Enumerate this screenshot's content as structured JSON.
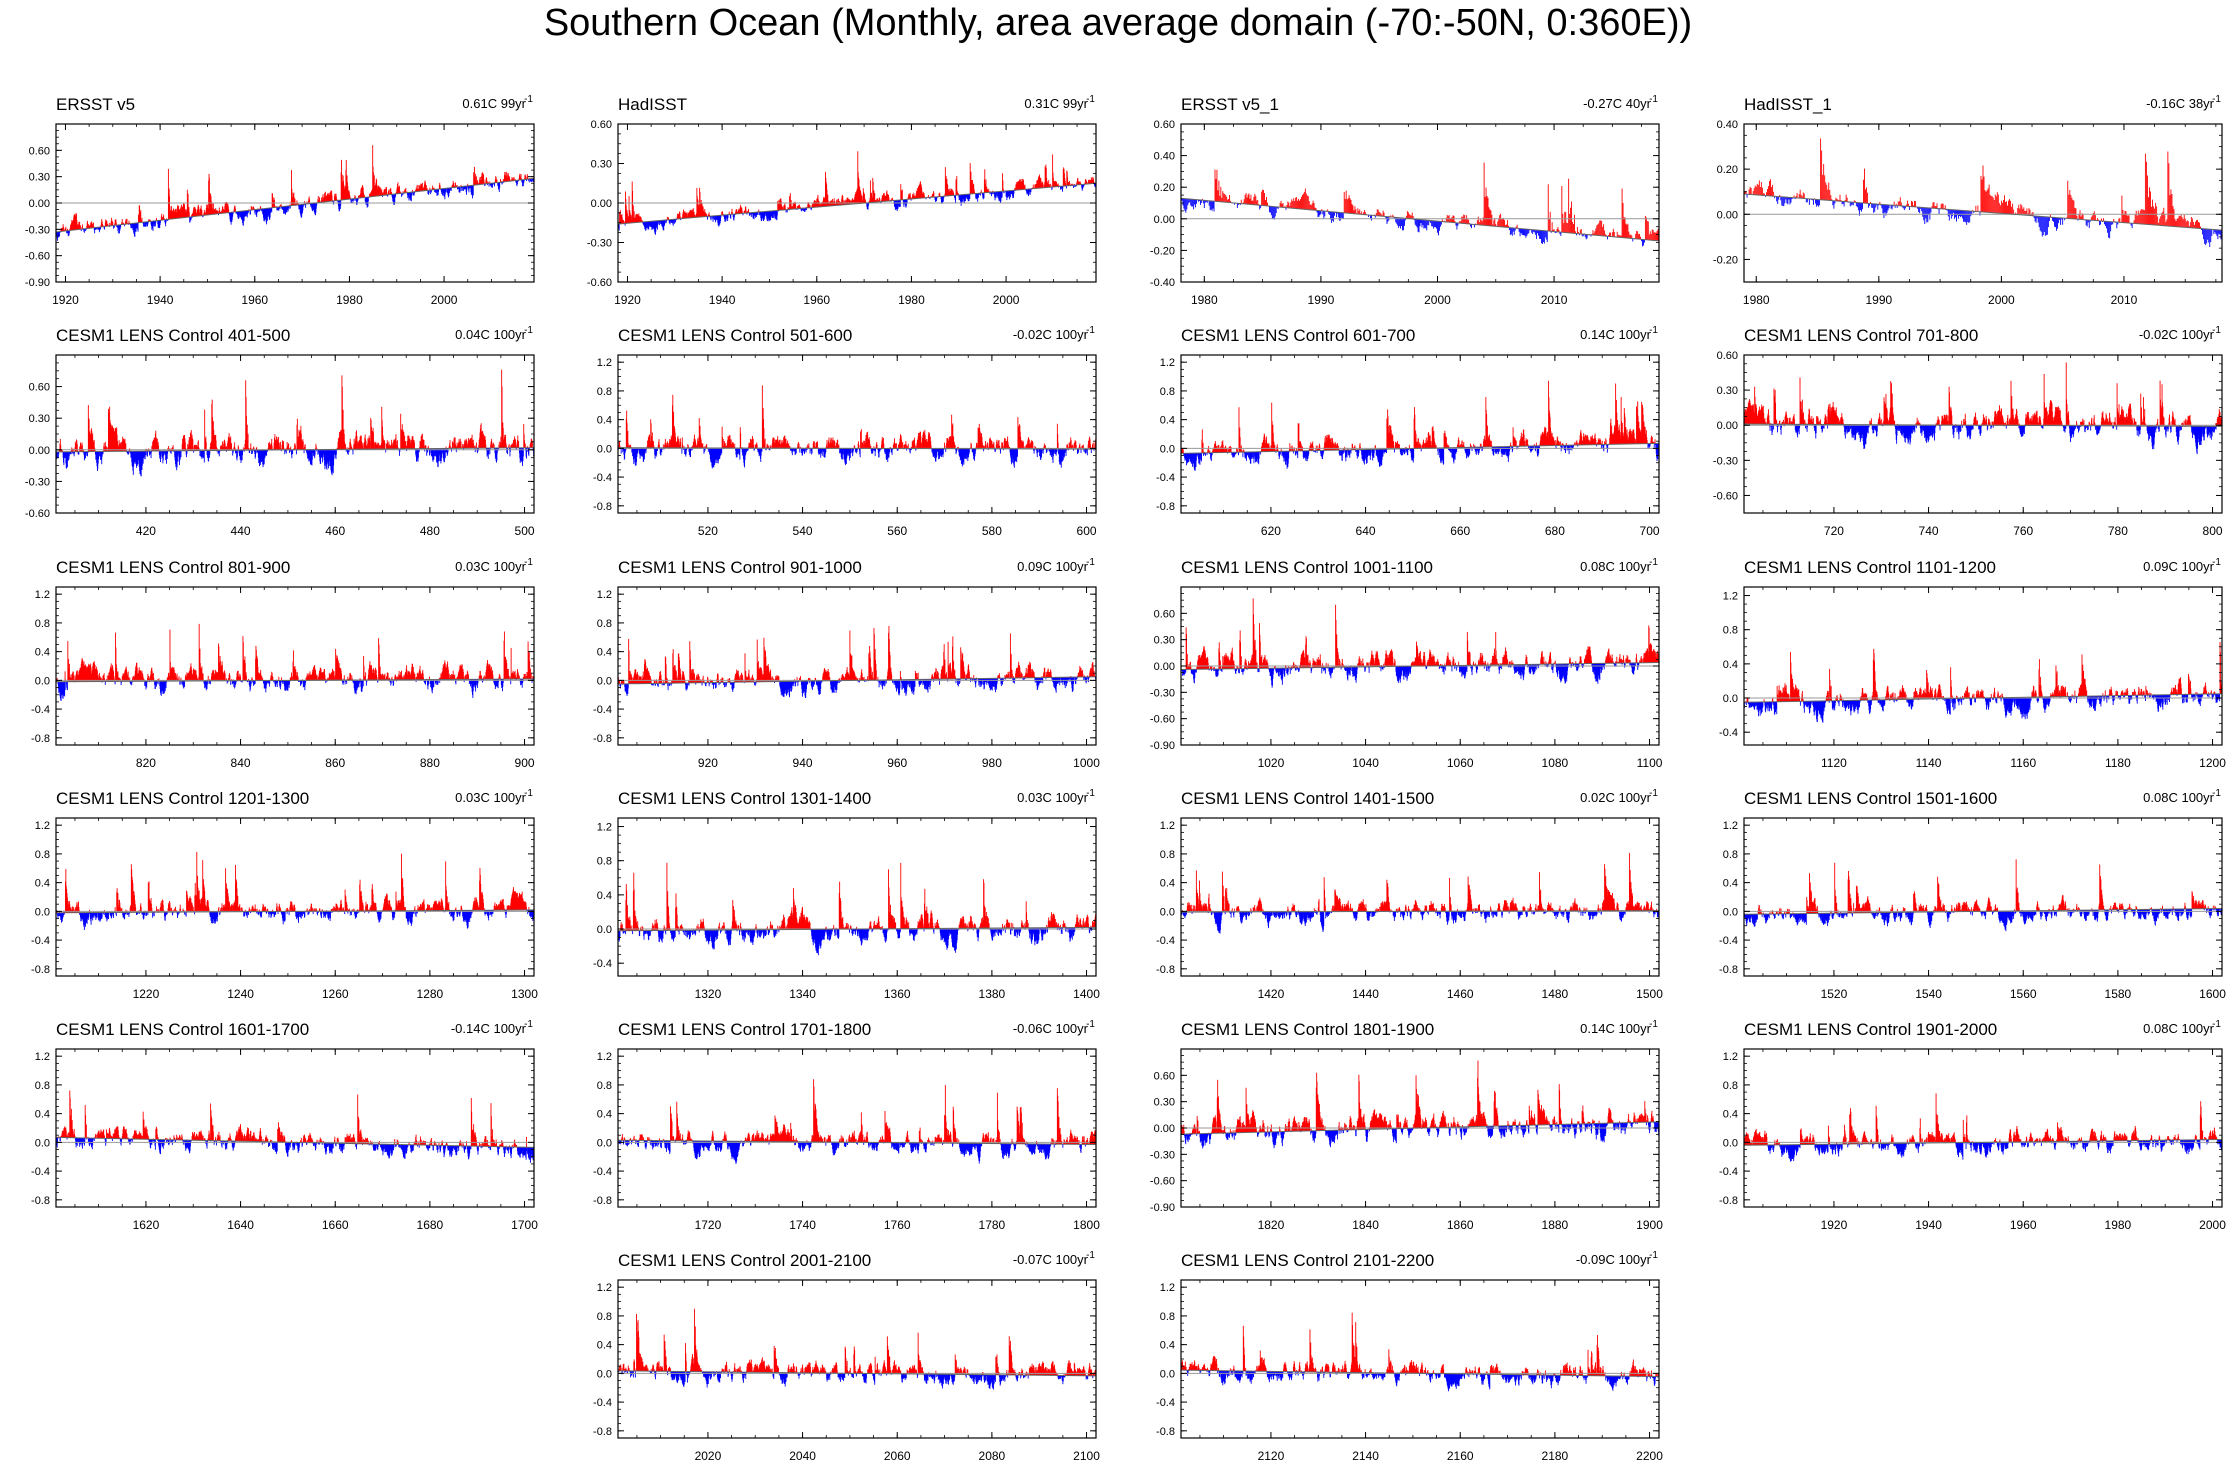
{
  "title": "Southern Ocean (Monthly, area average domain (-70:-50N, 0:360E))",
  "colors": {
    "positive": "#ff0000",
    "negative": "#0000ff",
    "trend": "#999999",
    "frame": "#000000"
  },
  "chart_data": [
    {
      "type": "area",
      "title": "ERSST v5",
      "trend_label": "0.61C 99yr",
      "trend_sup": "-1",
      "trend_value": 0.61,
      "xlim": [
        1918,
        2019
      ],
      "ylim": [
        -0.9,
        0.9
      ],
      "x_ticks": [
        1920,
        1940,
        1960,
        1980,
        2000
      ],
      "y_ticks": [
        "-0.90",
        "-0.60",
        "-0.30",
        "0.00",
        "0.30",
        "0.60"
      ],
      "y_tick_values": [
        -0.9,
        -0.6,
        -0.3,
        0,
        0.3,
        0.6
      ],
      "trend_line": [
        [
          1918,
          -0.33
        ],
        [
          2019,
          0.28
        ]
      ],
      "amplitude": 0.18,
      "seed": 11
    },
    {
      "type": "area",
      "title": "HadISST",
      "trend_label": "0.31C 99yr",
      "trend_sup": "-1",
      "trend_value": 0.31,
      "xlim": [
        1918,
        2019
      ],
      "ylim": [
        -0.6,
        0.6
      ],
      "x_ticks": [
        1920,
        1940,
        1960,
        1980,
        2000
      ],
      "y_ticks": [
        "-0.60",
        "-0.30",
        "0.00",
        "0.30",
        "0.60"
      ],
      "y_tick_values": [
        -0.6,
        -0.3,
        0,
        0.3,
        0.6
      ],
      "trend_line": [
        [
          1918,
          -0.16
        ],
        [
          2019,
          0.15
        ]
      ],
      "amplitude": 0.1,
      "seed": 12
    },
    {
      "type": "area",
      "title": "ERSST v5_1",
      "trend_label": "-0.27C 40yr",
      "trend_sup": "-1",
      "trend_value": -0.27,
      "xlim": [
        1978,
        2019
      ],
      "ylim": [
        -0.4,
        0.6
      ],
      "x_ticks": [
        1980,
        1990,
        2000,
        2010
      ],
      "y_ticks": [
        "-0.40",
        "-0.20",
        "0.00",
        "0.20",
        "0.40",
        "0.60"
      ],
      "y_tick_values": [
        -0.4,
        -0.2,
        0,
        0.2,
        0.4,
        0.6
      ],
      "trend_line": [
        [
          1978,
          0.13
        ],
        [
          2019,
          -0.14
        ]
      ],
      "amplitude": 0.12,
      "seed": 13
    },
    {
      "type": "area",
      "title": "HadISST_1",
      "trend_label": "-0.16C 38yr",
      "trend_sup": "-1",
      "trend_value": -0.16,
      "xlim": [
        1979,
        2018
      ],
      "ylim": [
        -0.3,
        0.4
      ],
      "x_ticks": [
        1980,
        1990,
        2000,
        2010
      ],
      "y_ticks": [
        "-0.20",
        "0.00",
        "0.20",
        "0.40"
      ],
      "y_tick_values": [
        -0.2,
        0,
        0.2,
        0.4
      ],
      "trend_line": [
        [
          1979,
          0.09
        ],
        [
          2018,
          -0.07
        ]
      ],
      "amplitude": 0.1,
      "seed": 14
    },
    {
      "type": "area",
      "title": "CESM1 LENS Control 401-500",
      "trend_label": "0.04C 100yr",
      "trend_sup": "-1",
      "trend_value": 0.04,
      "xlim": [
        401,
        502
      ],
      "ylim": [
        -0.6,
        0.9
      ],
      "x_ticks": [
        420,
        440,
        460,
        480,
        500
      ],
      "y_ticks": [
        "-0.60",
        "-0.30",
        "0.00",
        "0.30",
        "0.60"
      ],
      "y_tick_values": [
        -0.6,
        -0.3,
        0,
        0.3,
        0.6
      ],
      "trend_line": [
        [
          401,
          -0.02
        ],
        [
          502,
          0.02
        ]
      ],
      "amplitude": 0.22,
      "seed": 21
    },
    {
      "type": "area",
      "title": "CESM1 LENS Control 501-600",
      "trend_label": "-0.02C 100yr",
      "trend_sup": "-1",
      "trend_value": -0.02,
      "xlim": [
        501,
        602
      ],
      "ylim": [
        -0.9,
        1.3
      ],
      "x_ticks": [
        520,
        540,
        560,
        580,
        600
      ],
      "y_ticks": [
        "-0.8",
        "-0.4",
        "0.0",
        "0.4",
        "0.8",
        "1.2"
      ],
      "y_tick_values": [
        -0.8,
        -0.4,
        0,
        0.4,
        0.8,
        1.2
      ],
      "trend_line": [
        [
          501,
          0.01
        ],
        [
          602,
          -0.01
        ]
      ],
      "amplitude": 0.28,
      "seed": 22
    },
    {
      "type": "area",
      "title": "CESM1 LENS Control 601-700",
      "trend_label": "0.14C 100yr",
      "trend_sup": "-1",
      "trend_value": 0.14,
      "xlim": [
        601,
        702
      ],
      "ylim": [
        -0.9,
        1.3
      ],
      "x_ticks": [
        620,
        640,
        660,
        680,
        700
      ],
      "y_ticks": [
        "-0.8",
        "-0.4",
        "0.0",
        "0.4",
        "0.8",
        "1.2"
      ],
      "y_tick_values": [
        -0.8,
        -0.4,
        0,
        0.4,
        0.8,
        1.2
      ],
      "trend_line": [
        [
          601,
          -0.07
        ],
        [
          702,
          0.07
        ]
      ],
      "amplitude": 0.28,
      "seed": 23
    },
    {
      "type": "area",
      "title": "CESM1 LENS Control 701-800",
      "trend_label": "-0.02C 100yr",
      "trend_sup": "-1",
      "trend_value": -0.02,
      "xlim": [
        701,
        802
      ],
      "ylim": [
        -0.75,
        0.6
      ],
      "x_ticks": [
        720,
        740,
        760,
        780,
        800
      ],
      "y_ticks": [
        "-0.60",
        "-0.30",
        "0.00",
        "0.30",
        "0.60"
      ],
      "y_tick_values": [
        -0.6,
        -0.3,
        0,
        0.3,
        0.6
      ],
      "trend_line": [
        [
          701,
          0.01
        ],
        [
          802,
          -0.01
        ]
      ],
      "amplitude": 0.2,
      "seed": 24
    },
    {
      "type": "area",
      "title": "CESM1 LENS Control 801-900",
      "trend_label": "0.03C 100yr",
      "trend_sup": "-1",
      "trend_value": 0.03,
      "xlim": [
        801,
        902
      ],
      "ylim": [
        -0.9,
        1.3
      ],
      "x_ticks": [
        820,
        840,
        860,
        880,
        900
      ],
      "y_ticks": [
        "-0.8",
        "-0.4",
        "0.0",
        "0.4",
        "0.8",
        "1.2"
      ],
      "y_tick_values": [
        -0.8,
        -0.4,
        0,
        0.4,
        0.8,
        1.2
      ],
      "trend_line": [
        [
          801,
          -0.02
        ],
        [
          902,
          0.02
        ]
      ],
      "amplitude": 0.26,
      "seed": 31
    },
    {
      "type": "area",
      "title": "CESM1 LENS Control 901-1000",
      "trend_label": "0.09C 100yr",
      "trend_sup": "-1",
      "trend_value": 0.09,
      "xlim": [
        901,
        1002
      ],
      "ylim": [
        -0.9,
        1.3
      ],
      "x_ticks": [
        920,
        940,
        960,
        980,
        1000
      ],
      "y_ticks": [
        "-0.8",
        "-0.4",
        "0.0",
        "0.4",
        "0.8",
        "1.2"
      ],
      "y_tick_values": [
        -0.8,
        -0.4,
        0,
        0.4,
        0.8,
        1.2
      ],
      "trend_line": [
        [
          901,
          -0.05
        ],
        [
          1002,
          0.05
        ]
      ],
      "amplitude": 0.26,
      "seed": 32
    },
    {
      "type": "area",
      "title": "CESM1 LENS Control 1001-1100",
      "trend_label": "0.08C 100yr",
      "trend_sup": "-1",
      "trend_value": 0.08,
      "xlim": [
        1001,
        1102
      ],
      "ylim": [
        -0.9,
        0.9
      ],
      "x_ticks": [
        1020,
        1040,
        1060,
        1080,
        1100
      ],
      "y_ticks": [
        "-0.90",
        "-0.60",
        "-0.30",
        "0.00",
        "0.30",
        "0.60"
      ],
      "y_tick_values": [
        -0.9,
        -0.6,
        -0.3,
        0,
        0.3,
        0.6
      ],
      "trend_line": [
        [
          1001,
          -0.04
        ],
        [
          1102,
          0.04
        ]
      ],
      "amplitude": 0.24,
      "seed": 33
    },
    {
      "type": "area",
      "title": "CESM1 LENS Control 1101-1200",
      "trend_label": "0.09C 100yr",
      "trend_sup": "-1",
      "trend_value": 0.09,
      "xlim": [
        1101,
        1202
      ],
      "ylim": [
        -0.55,
        1.3
      ],
      "x_ticks": [
        1120,
        1140,
        1160,
        1180,
        1200
      ],
      "y_ticks": [
        "-0.4",
        "0.0",
        "0.4",
        "0.8",
        "1.2"
      ],
      "y_tick_values": [
        -0.4,
        0,
        0.4,
        0.8,
        1.2
      ],
      "trend_line": [
        [
          1101,
          -0.05
        ],
        [
          1202,
          0.05
        ]
      ],
      "amplitude": 0.24,
      "seed": 34
    },
    {
      "type": "area",
      "title": "CESM1 LENS Control 1201-1300",
      "trend_label": "0.03C 100yr",
      "trend_sup": "-1",
      "trend_value": 0.03,
      "xlim": [
        1201,
        1302
      ],
      "ylim": [
        -0.9,
        1.3
      ],
      "x_ticks": [
        1220,
        1240,
        1260,
        1280,
        1300
      ],
      "y_ticks": [
        "-0.8",
        "-0.4",
        "0.0",
        "0.4",
        "0.8",
        "1.2"
      ],
      "y_tick_values": [
        -0.8,
        -0.4,
        0,
        0.4,
        0.8,
        1.2
      ],
      "trend_line": [
        [
          1201,
          -0.02
        ],
        [
          1302,
          0.02
        ]
      ],
      "amplitude": 0.24,
      "seed": 41
    },
    {
      "type": "area",
      "title": "CESM1 LENS Control 1301-1400",
      "trend_label": "0.03C 100yr",
      "trend_sup": "-1",
      "trend_value": 0.03,
      "xlim": [
        1301,
        1402
      ],
      "ylim": [
        -0.55,
        1.3
      ],
      "x_ticks": [
        1320,
        1340,
        1360,
        1380,
        1400
      ],
      "y_ticks": [
        "-0.4",
        "0.0",
        "0.4",
        "0.8",
        "1.2"
      ],
      "y_tick_values": [
        -0.4,
        0,
        0.4,
        0.8,
        1.2
      ],
      "trend_line": [
        [
          1301,
          -0.02
        ],
        [
          1402,
          0.02
        ]
      ],
      "amplitude": 0.24,
      "seed": 42
    },
    {
      "type": "area",
      "title": "CESM1 LENS Control 1401-1500",
      "trend_label": "0.02C 100yr",
      "trend_sup": "-1",
      "trend_value": 0.02,
      "xlim": [
        1401,
        1502
      ],
      "ylim": [
        -0.9,
        1.3
      ],
      "x_ticks": [
        1420,
        1440,
        1460,
        1480,
        1500
      ],
      "y_ticks": [
        "-0.8",
        "-0.4",
        "0.0",
        "0.4",
        "0.8",
        "1.2"
      ],
      "y_tick_values": [
        -0.8,
        -0.4,
        0,
        0.4,
        0.8,
        1.2
      ],
      "trend_line": [
        [
          1401,
          -0.01
        ],
        [
          1502,
          0.01
        ]
      ],
      "amplitude": 0.24,
      "seed": 43
    },
    {
      "type": "area",
      "title": "CESM1 LENS Control 1501-1600",
      "trend_label": "0.08C 100yr",
      "trend_sup": "-1",
      "trend_value": 0.08,
      "xlim": [
        1501,
        1602
      ],
      "ylim": [
        -0.9,
        1.3
      ],
      "x_ticks": [
        1520,
        1540,
        1560,
        1580,
        1600
      ],
      "y_ticks": [
        "-0.8",
        "-0.4",
        "0.0",
        "0.4",
        "0.8",
        "1.2"
      ],
      "y_tick_values": [
        -0.8,
        -0.4,
        0,
        0.4,
        0.8,
        1.2
      ],
      "trend_line": [
        [
          1501,
          -0.04
        ],
        [
          1602,
          0.04
        ]
      ],
      "amplitude": 0.22,
      "seed": 44
    },
    {
      "type": "area",
      "title": "CESM1 LENS Control 1601-1700",
      "trend_label": "-0.14C 100yr",
      "trend_sup": "-1",
      "trend_value": -0.14,
      "xlim": [
        1601,
        1702
      ],
      "ylim": [
        -0.9,
        1.3
      ],
      "x_ticks": [
        1620,
        1640,
        1660,
        1680,
        1700
      ],
      "y_ticks": [
        "-0.8",
        "-0.4",
        "0.0",
        "0.4",
        "0.8",
        "1.2"
      ],
      "y_tick_values": [
        -0.8,
        -0.4,
        0,
        0.4,
        0.8,
        1.2
      ],
      "trend_line": [
        [
          1601,
          0.07
        ],
        [
          1702,
          -0.07
        ]
      ],
      "amplitude": 0.24,
      "seed": 51
    },
    {
      "type": "area",
      "title": "CESM1 LENS Control 1701-1800",
      "trend_label": "-0.06C 100yr",
      "trend_sup": "-1",
      "trend_value": -0.06,
      "xlim": [
        1701,
        1802
      ],
      "ylim": [
        -0.9,
        1.3
      ],
      "x_ticks": [
        1720,
        1740,
        1760,
        1780,
        1800
      ],
      "y_ticks": [
        "-0.8",
        "-0.4",
        "0.0",
        "0.4",
        "0.8",
        "1.2"
      ],
      "y_tick_values": [
        -0.8,
        -0.4,
        0,
        0.4,
        0.8,
        1.2
      ],
      "trend_line": [
        [
          1701,
          0.03
        ],
        [
          1802,
          -0.03
        ]
      ],
      "amplitude": 0.24,
      "seed": 52
    },
    {
      "type": "area",
      "title": "CESM1 LENS Control 1801-1900",
      "trend_label": "0.14C 100yr",
      "trend_sup": "-1",
      "trend_value": 0.14,
      "xlim": [
        1801,
        1902
      ],
      "ylim": [
        -0.9,
        0.9
      ],
      "x_ticks": [
        1820,
        1840,
        1860,
        1880,
        1900
      ],
      "y_ticks": [
        "-0.90",
        "-0.60",
        "-0.30",
        "0.00",
        "0.30",
        "0.60"
      ],
      "y_tick_values": [
        -0.9,
        -0.6,
        -0.3,
        0,
        0.3,
        0.6
      ],
      "trend_line": [
        [
          1801,
          -0.07
        ],
        [
          1902,
          0.07
        ]
      ],
      "amplitude": 0.24,
      "seed": 53
    },
    {
      "type": "area",
      "title": "CESM1 LENS Control 1901-2000",
      "trend_label": "0.08C 100yr",
      "trend_sup": "-1",
      "trend_value": 0.08,
      "xlim": [
        1901,
        2002
      ],
      "ylim": [
        -0.9,
        1.3
      ],
      "x_ticks": [
        1920,
        1940,
        1960,
        1980,
        2000
      ],
      "y_ticks": [
        "-0.8",
        "-0.4",
        "0.0",
        "0.4",
        "0.8",
        "1.2"
      ],
      "y_tick_values": [
        -0.8,
        -0.4,
        0,
        0.4,
        0.8,
        1.2
      ],
      "trend_line": [
        [
          1901,
          -0.04
        ],
        [
          2002,
          0.04
        ]
      ],
      "amplitude": 0.24,
      "seed": 54
    },
    {
      "type": "area",
      "title": "CESM1 LENS Control 2001-2100",
      "trend_label": "-0.07C 100yr",
      "trend_sup": "-1",
      "trend_value": -0.07,
      "xlim": [
        2001,
        2102
      ],
      "ylim": [
        -0.9,
        1.3
      ],
      "x_ticks": [
        2020,
        2040,
        2060,
        2080,
        2100
      ],
      "y_ticks": [
        "-0.8",
        "-0.4",
        "0.0",
        "0.4",
        "0.8",
        "1.2"
      ],
      "y_tick_values": [
        -0.8,
        -0.4,
        0,
        0.4,
        0.8,
        1.2
      ],
      "trend_line": [
        [
          2001,
          0.035
        ],
        [
          2102,
          -0.035
        ]
      ],
      "amplitude": 0.24,
      "seed": 61
    },
    {
      "type": "area",
      "title": "CESM1 LENS Control 2101-2200",
      "trend_label": "-0.09C 100yr",
      "trend_sup": "-1",
      "trend_value": -0.09,
      "xlim": [
        2101,
        2202
      ],
      "ylim": [
        -0.9,
        1.3
      ],
      "x_ticks": [
        2120,
        2140,
        2160,
        2180,
        2200
      ],
      "y_ticks": [
        "-0.8",
        "-0.4",
        "0.0",
        "0.4",
        "0.8",
        "1.2"
      ],
      "y_tick_values": [
        -0.8,
        -0.4,
        0,
        0.4,
        0.8,
        1.2
      ],
      "trend_line": [
        [
          2101,
          0.045
        ],
        [
          2202,
          -0.045
        ]
      ],
      "amplitude": 0.24,
      "seed": 62
    }
  ]
}
